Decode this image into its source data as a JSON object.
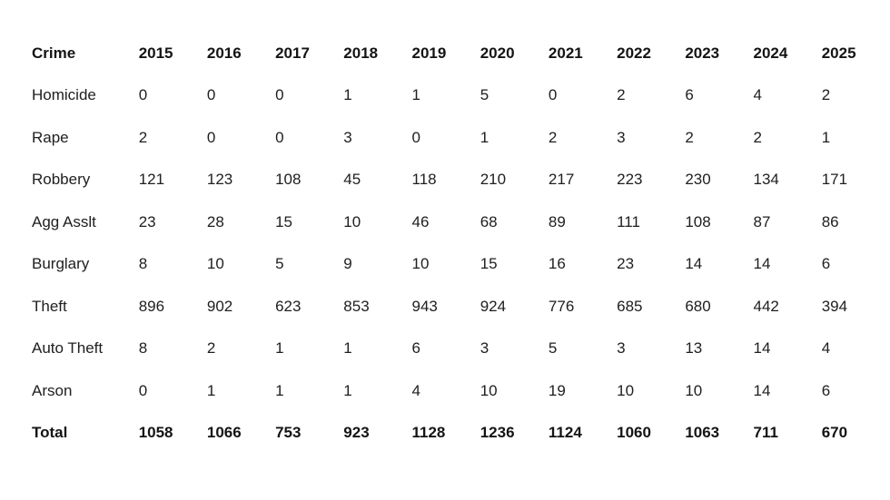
{
  "page": {
    "background": "#ffffff"
  },
  "colors": {
    "text": "#202020",
    "header_text": "#141414",
    "background": "#ffffff"
  },
  "chart_data": {
    "type": "table",
    "columns": [
      "Crime",
      "2015",
      "2016",
      "2017",
      "2018",
      "2019",
      "2020",
      "2021",
      "2022",
      "2023",
      "2024",
      "2025"
    ],
    "rows": [
      {
        "label": "Homicide",
        "values": [
          0,
          0,
          0,
          1,
          1,
          5,
          0,
          2,
          6,
          4,
          2
        ],
        "bold": false
      },
      {
        "label": "Rape",
        "values": [
          2,
          0,
          0,
          3,
          0,
          1,
          2,
          3,
          2,
          2,
          1
        ],
        "bold": false
      },
      {
        "label": "Robbery",
        "values": [
          121,
          123,
          108,
          45,
          118,
          210,
          217,
          223,
          230,
          134,
          171
        ],
        "bold": false
      },
      {
        "label": "Agg Asslt",
        "values": [
          23,
          28,
          15,
          10,
          46,
          68,
          89,
          111,
          108,
          87,
          86
        ],
        "bold": false
      },
      {
        "label": "Burglary",
        "values": [
          8,
          10,
          5,
          9,
          10,
          15,
          16,
          23,
          14,
          14,
          6
        ],
        "bold": false
      },
      {
        "label": "Theft",
        "values": [
          896,
          902,
          623,
          853,
          943,
          924,
          776,
          685,
          680,
          442,
          394
        ],
        "bold": false
      },
      {
        "label": "Auto Theft",
        "values": [
          8,
          2,
          1,
          1,
          6,
          3,
          5,
          3,
          13,
          14,
          4
        ],
        "bold": false
      },
      {
        "label": "Arson",
        "values": [
          0,
          1,
          1,
          1,
          4,
          10,
          19,
          10,
          10,
          14,
          6
        ],
        "bold": false
      },
      {
        "label": "Total",
        "values": [
          1058,
          1066,
          753,
          923,
          1128,
          1236,
          1124,
          1060,
          1063,
          711,
          670
        ],
        "bold": true
      }
    ]
  }
}
